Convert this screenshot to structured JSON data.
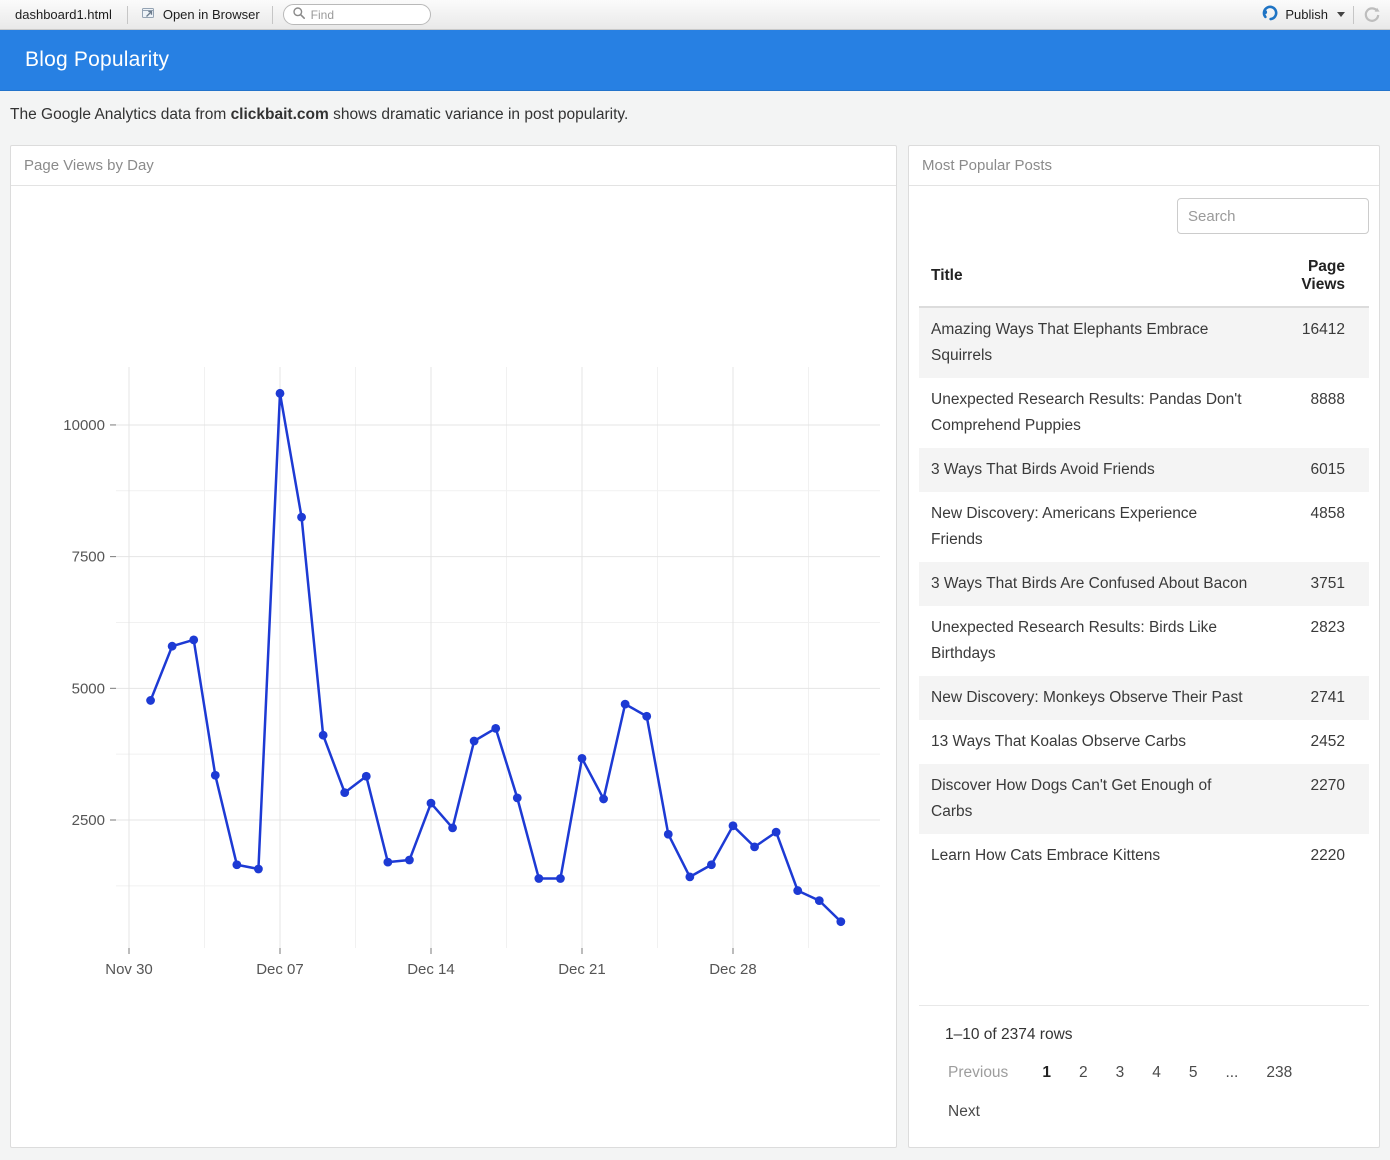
{
  "toolbar": {
    "tab_title": "dashboard1.html",
    "open_in_browser_label": "Open in Browser",
    "find_placeholder": "Find",
    "publish_label": "Publish"
  },
  "navbar": {
    "title": "Blog Popularity"
  },
  "subtitle": {
    "prefix": "The Google Analytics data from ",
    "bold": "clickbait.com",
    "suffix": " shows dramatic variance in post popularity."
  },
  "chart_panel": {
    "title": "Page Views by Day"
  },
  "chart_data": {
    "type": "line",
    "title": "Page Views by Day",
    "x": [
      "Dec 01",
      "Dec 02",
      "Dec 03",
      "Dec 04",
      "Dec 05",
      "Dec 06",
      "Dec 07",
      "Dec 08",
      "Dec 09",
      "Dec 10",
      "Dec 11",
      "Dec 12",
      "Dec 13",
      "Dec 14",
      "Dec 15",
      "Dec 16",
      "Dec 17",
      "Dec 18",
      "Dec 19",
      "Dec 20",
      "Dec 21",
      "Dec 22",
      "Dec 23",
      "Dec 24",
      "Dec 25",
      "Dec 26",
      "Dec 27",
      "Dec 28",
      "Dec 29",
      "Dec 30",
      "Dec 31",
      "Jan 01",
      "Jan 02"
    ],
    "values": [
      4770,
      5800,
      5920,
      3350,
      1650,
      1570,
      10600,
      8250,
      4110,
      3020,
      3330,
      1700,
      1740,
      2820,
      2350,
      4000,
      4240,
      2920,
      1390,
      1390,
      3670,
      2900,
      4700,
      4470,
      2230,
      1420,
      1650,
      2390,
      1990,
      2270,
      1160,
      970,
      570
    ],
    "xlabel": "",
    "ylabel": "",
    "x_tick_labels": [
      "Nov 30",
      "Dec 07",
      "Dec 14",
      "Dec 21",
      "Dec 28"
    ],
    "x_tick_day_offsets": [
      0,
      7,
      14,
      21,
      28
    ],
    "x_minor_tick_day_offsets": [
      3.5,
      10.5,
      17.5,
      24.5,
      31.5
    ],
    "first_point_day_offset": 1,
    "y_ticks": [
      2500,
      5000,
      7500,
      10000
    ],
    "y_minor_ticks": [
      1250,
      3750,
      6250,
      8750
    ],
    "ylim": [
      70,
      11100
    ],
    "grid": true,
    "legend_position": "none",
    "line_color": "#1d3ad4",
    "point_color": "#1d3ad4",
    "grid_major_color": "#e4e4e4",
    "grid_minor_color": "#f1f1f1",
    "axis_text_color": "#555555"
  },
  "table_panel": {
    "title": "Most Popular Posts",
    "search_placeholder": "Search",
    "columns": {
      "title": "Title",
      "views": "Page Views"
    },
    "rows": [
      {
        "title": "Amazing Ways That Elephants Embrace Squirrels",
        "views": "16412"
      },
      {
        "title": "Unexpected Research Results: Pandas Don't Comprehend Puppies",
        "views": "8888"
      },
      {
        "title": "3 Ways That Birds Avoid Friends",
        "views": "6015"
      },
      {
        "title": "New Discovery: Americans Experience Friends",
        "views": "4858"
      },
      {
        "title": "3 Ways That Birds Are Confused About Bacon",
        "views": "3751"
      },
      {
        "title": "Unexpected Research Results: Birds Like Birthdays",
        "views": "2823"
      },
      {
        "title": "New Discovery: Monkeys Observe Their Past",
        "views": "2741"
      },
      {
        "title": "13 Ways That Koalas Observe Carbs",
        "views": "2452"
      },
      {
        "title": "Discover How Dogs Can't Get Enough of Carbs",
        "views": "2270"
      },
      {
        "title": "Learn How Cats Embrace Kittens",
        "views": "2220"
      }
    ],
    "footer": {
      "info": "1–10 of 2374 rows",
      "previous": "Previous",
      "pages": [
        "1",
        "2",
        "3",
        "4",
        "5",
        "...",
        "238"
      ],
      "current_page": "1",
      "next": "Next"
    }
  },
  "colors": {
    "navbar": "#2780e3",
    "line": "#1d3ad4"
  }
}
